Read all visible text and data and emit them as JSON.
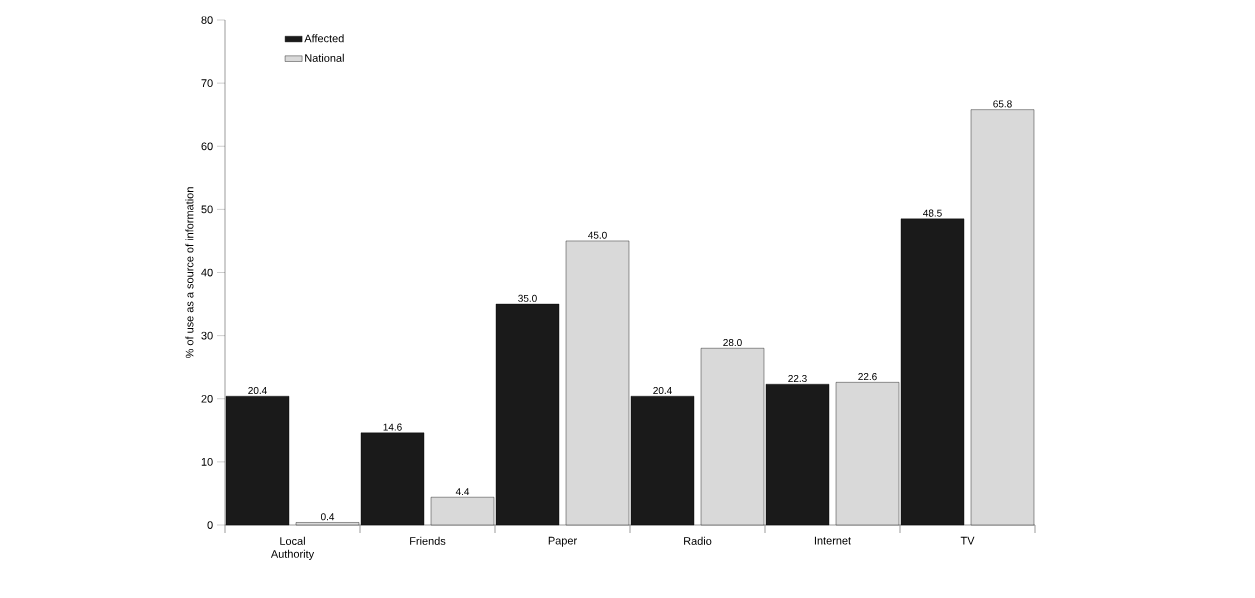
{
  "chart_data": {
    "type": "bar",
    "ylabel": "% of use as a source of information",
    "categories": [
      "Local Authority",
      "Friends",
      "Paper",
      "Radio",
      "Internet",
      "TV"
    ],
    "series": [
      {
        "name": "Affected",
        "color": "#1a1a1a",
        "values": [
          20.4,
          14.6,
          35.0,
          20.4,
          22.3,
          48.5
        ],
        "value_labels": [
          "20.4",
          "14.6",
          "35.0",
          "20.4",
          "22.3",
          "48.5"
        ]
      },
      {
        "name": "National",
        "color": "#d9d9d9",
        "values": [
          0.4,
          4.4,
          45.0,
          28.0,
          22.6,
          65.8
        ],
        "value_labels": [
          "0.4",
          "4.4",
          "45.0",
          "28.0",
          "22.6",
          "65.8"
        ]
      }
    ],
    "ylim": [
      0,
      80
    ],
    "yticks": [
      0,
      10,
      20,
      30,
      40,
      50,
      60,
      70,
      80
    ],
    "grid": false,
    "legend": "top left"
  }
}
